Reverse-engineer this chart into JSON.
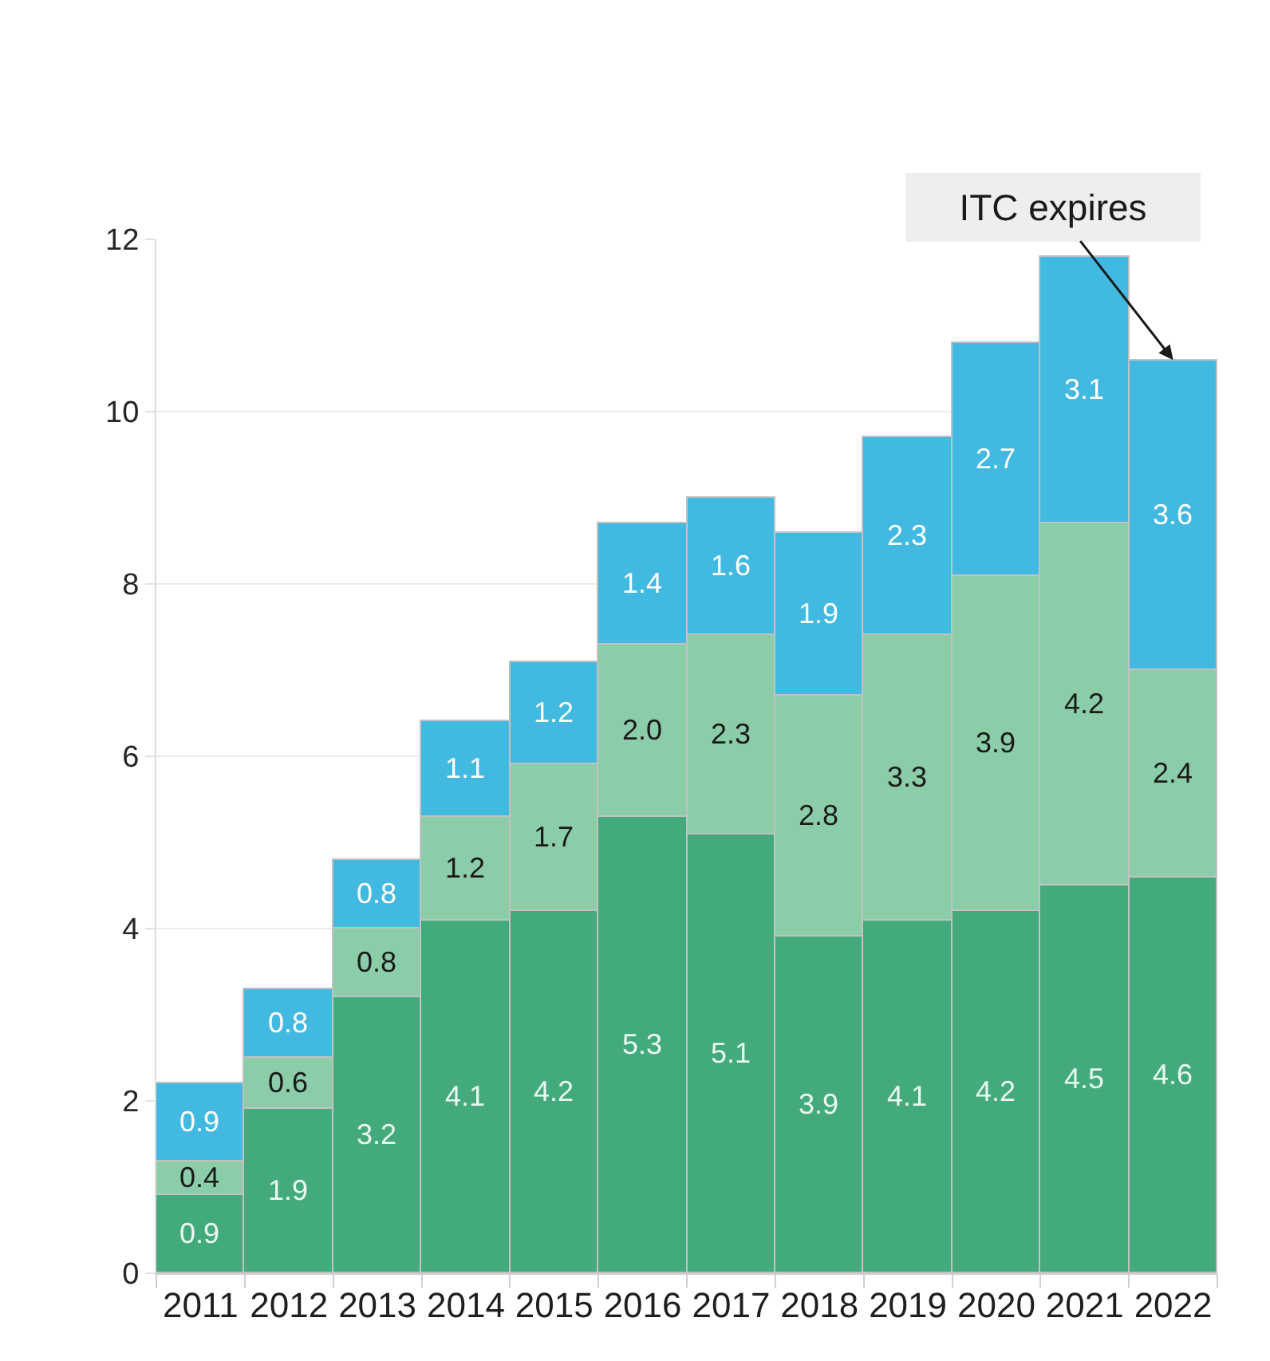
{
  "chart_data": {
    "type": "bar",
    "stacked": true,
    "categories": [
      "2011",
      "2012",
      "2013",
      "2014",
      "2015",
      "2016",
      "2017",
      "2018",
      "2019",
      "2020",
      "2021",
      "2022"
    ],
    "series": [
      {
        "color": "#43ab7b",
        "values": [
          0.9,
          1.9,
          3.2,
          4.1,
          4.2,
          5.3,
          5.1,
          3.9,
          4.1,
          4.2,
          4.5,
          4.6
        ],
        "value_labels": [
          "0.9",
          "1.9",
          "3.2",
          "4.1",
          "4.2",
          "5.3",
          "5.1",
          "3.9",
          "4.1",
          "4.2",
          "4.5",
          "4.6"
        ]
      },
      {
        "color": "#8bcca9",
        "values": [
          0.4,
          0.6,
          0.8,
          1.2,
          1.7,
          2.0,
          2.3,
          2.8,
          3.3,
          3.9,
          4.2,
          2.4
        ],
        "value_labels": [
          "0.4",
          "0.6",
          "0.8",
          "1.2",
          "1.7",
          "2.0",
          "2.3",
          "2.8",
          "3.3",
          "3.9",
          "4.2",
          "2.4"
        ]
      },
      {
        "color": "#42b9e1",
        "values": [
          0.9,
          0.8,
          0.8,
          1.1,
          1.2,
          1.4,
          1.6,
          1.9,
          2.3,
          2.7,
          3.1,
          3.6
        ],
        "value_labels": [
          "0.9",
          "0.8",
          "0.8",
          "1.1",
          "1.2",
          "1.4",
          "1.6",
          "1.9",
          "2.3",
          "2.7",
          "3.1",
          "3.6"
        ]
      }
    ],
    "ylim": [
      0,
      12
    ],
    "yticks": [
      0,
      2,
      4,
      6,
      8,
      10,
      12
    ],
    "grid": "y",
    "annotations": [
      {
        "text": "ITC expires",
        "x": "2022",
        "y": 10.6
      }
    ]
  }
}
